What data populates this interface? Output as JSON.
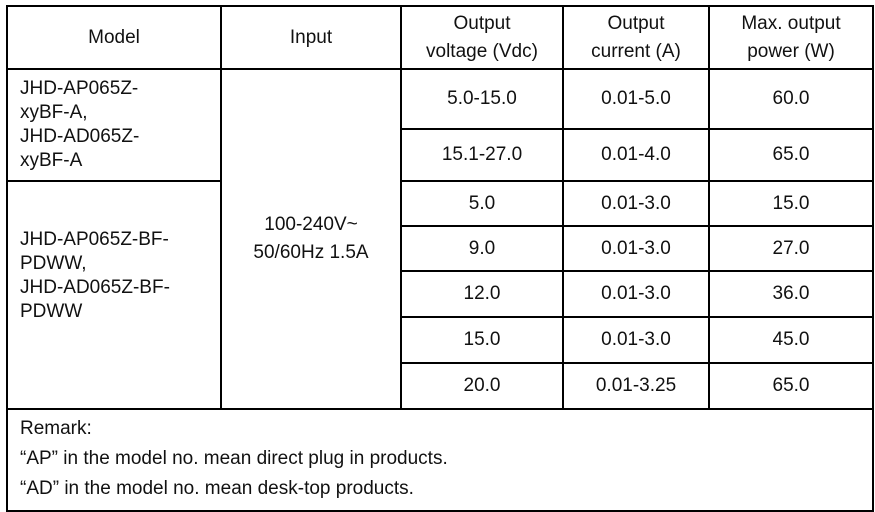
{
  "headers": [
    "Model",
    "Input",
    "Output voltage (Vdc)",
    "Output current (A)",
    "Max. output power (W)"
  ],
  "header_lines": {
    "voltage": [
      "Output",
      "voltage (Vdc)"
    ],
    "current": [
      "Output",
      "current (A)"
    ],
    "power": [
      "Max. output",
      "power (W)"
    ]
  },
  "input": [
    "100-240V~",
    "50/60Hz 1.5A"
  ],
  "groups": [
    {
      "model_lines": [
        "JHD-AP065Z-",
        "xyBF-A,",
        "JHD-AD065Z-",
        "xyBF-A"
      ],
      "rows": [
        {
          "voltage": "5.0-15.0",
          "current": "0.01-5.0",
          "power": "60.0"
        },
        {
          "voltage": "15.1-27.0",
          "current": "0.01-4.0",
          "power": "65.0"
        }
      ]
    },
    {
      "model_lines": [
        "JHD-AP065Z-BF-",
        "PDWW,",
        "JHD-AD065Z-BF-",
        "PDWW"
      ],
      "rows": [
        {
          "voltage": "5.0",
          "current": "0.01-3.0",
          "power": "15.0"
        },
        {
          "voltage": "9.0",
          "current": "0.01-3.0",
          "power": "27.0"
        },
        {
          "voltage": "12.0",
          "current": "0.01-3.0",
          "power": "36.0"
        },
        {
          "voltage": "15.0",
          "current": "0.01-3.0",
          "power": "45.0"
        },
        {
          "voltage": "20.0",
          "current": "0.01-3.25",
          "power": "65.0"
        }
      ]
    }
  ],
  "remark": {
    "title": "Remark:",
    "lines": [
      "“AP” in the model no. mean direct plug in products.",
      "“AD” in the model no. mean desk-top products."
    ]
  }
}
